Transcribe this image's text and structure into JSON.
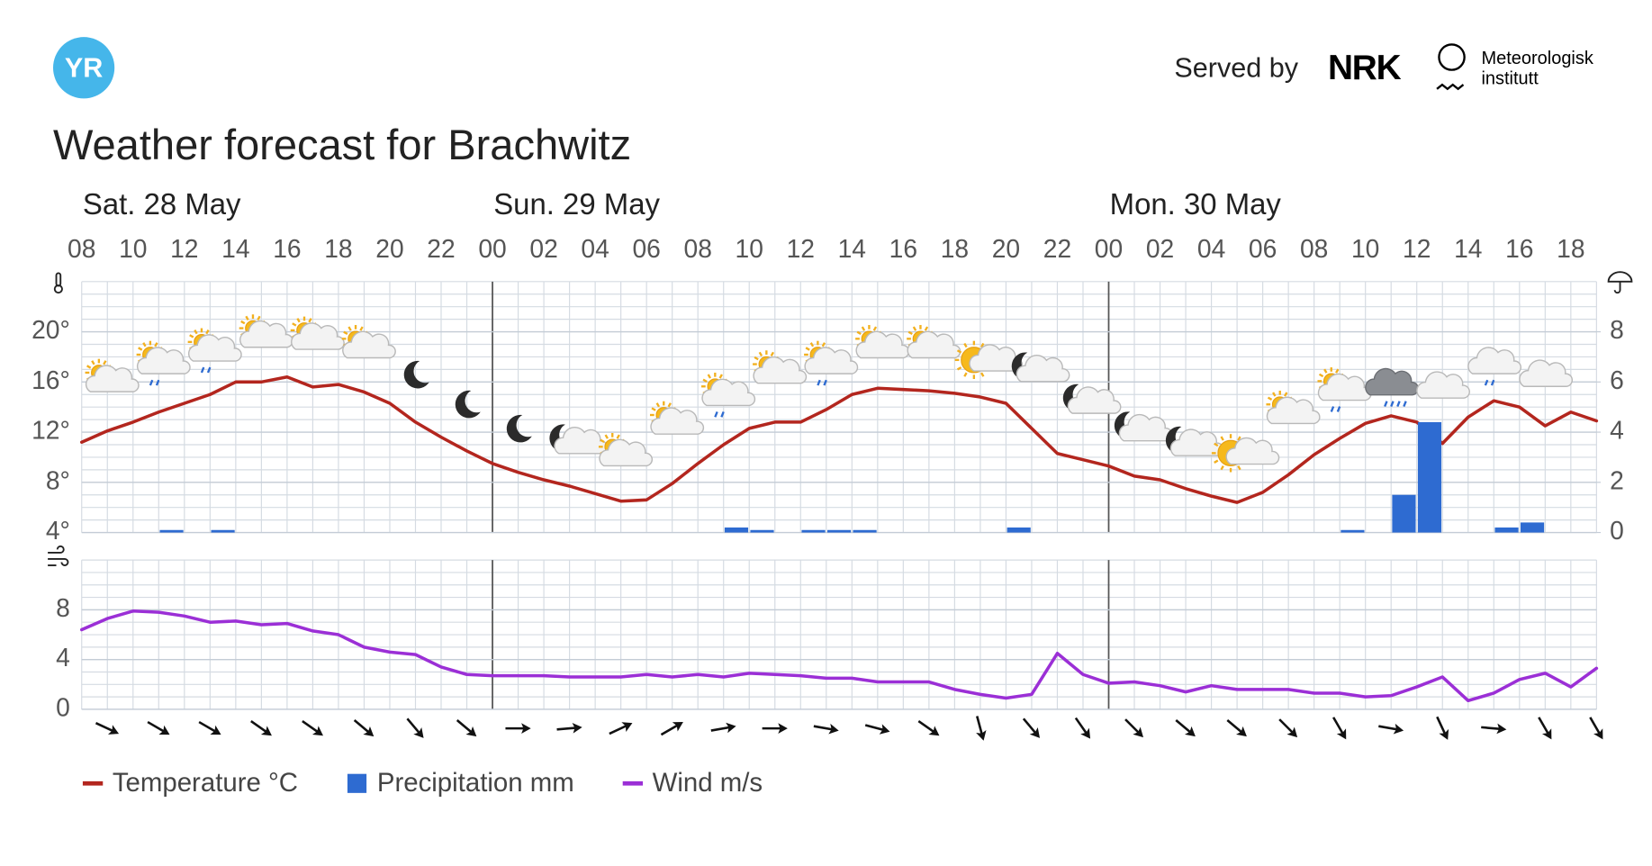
{
  "header": {
    "logo": "YR",
    "served_by": "Served by",
    "nrk": "NRK",
    "met_line1": "Meteorologisk",
    "met_line2": "institutt"
  },
  "chart_data": {
    "type": "line",
    "title": "Weather forecast for Brachwitz",
    "days": [
      "Sat. 28 May",
      "Sun. 29 May",
      "Mon. 30 May"
    ],
    "categories": [
      "08",
      null,
      "10",
      null,
      "12",
      null,
      "14",
      null,
      "16",
      null,
      "18",
      null,
      "20",
      null,
      "22",
      null,
      "00",
      null,
      "02",
      null,
      "04",
      null,
      "06",
      null,
      "08",
      null,
      "10",
      null,
      "12",
      null,
      "14",
      null,
      "16",
      null,
      "18",
      null,
      "20",
      null,
      "22",
      null,
      "00",
      null,
      "02",
      null,
      "04",
      null,
      "06",
      null,
      "08",
      null,
      "10",
      null,
      "12",
      null,
      "14",
      null,
      "16",
      null,
      "18",
      null
    ],
    "ylim": [
      4,
      24
    ],
    "yticks": [
      {
        "value": 4,
        "label": "4°"
      },
      {
        "value": 8,
        "label": "8°"
      },
      {
        "value": 12,
        "label": "12°"
      },
      {
        "value": 16,
        "label": "16°"
      },
      {
        "value": 20,
        "label": "20°"
      }
    ],
    "y2lim": [
      0,
      10
    ],
    "y2ticks": [
      0,
      2,
      4,
      6,
      8
    ],
    "y3lim": [
      0,
      12
    ],
    "y3ticks": [
      0,
      4,
      8
    ],
    "grid": true,
    "series": [
      {
        "name": "Temperature °C",
        "color": "#b3261e",
        "kind": "line",
        "axis": "y",
        "values": [
          11.2,
          12.1,
          12.8,
          13.6,
          14.3,
          15.0,
          16.0,
          16.0,
          16.4,
          15.6,
          15.8,
          15.2,
          14.3,
          12.8,
          11.6,
          10.5,
          9.5,
          8.8,
          8.2,
          7.7,
          7.1,
          6.5,
          6.6,
          7.9,
          9.5,
          11.0,
          12.3,
          12.8,
          12.8,
          13.8,
          15.0,
          15.5,
          15.4,
          15.3,
          15.1,
          14.8,
          14.3,
          12.3,
          10.3,
          9.8,
          9.3,
          8.5,
          8.2,
          7.5,
          6.9,
          6.4,
          7.2,
          8.6,
          10.2,
          11.5,
          12.7,
          13.3,
          12.8,
          11.1,
          13.2,
          14.5,
          14.0,
          12.5,
          13.6,
          12.9
        ]
      },
      {
        "name": "Precipitation mm",
        "color": "#2e6bd1",
        "kind": "bar",
        "axis": "y2",
        "values": [
          0,
          0,
          0,
          0.1,
          0,
          0.1,
          0,
          0,
          0,
          0,
          0,
          0,
          0,
          0,
          0,
          0,
          0,
          0,
          0,
          0,
          0,
          0,
          0,
          0,
          0,
          0.2,
          0.1,
          0,
          0.1,
          0.1,
          0.1,
          0,
          0,
          0,
          0,
          0,
          0.2,
          0,
          0,
          0,
          0,
          0,
          0,
          0,
          0,
          0,
          0,
          0,
          0,
          0.1,
          0,
          1.5,
          4.4,
          0,
          0,
          0.2,
          0.4,
          0,
          0,
          0
        ]
      },
      {
        "name": "Wind m/s",
        "color": "#9b2fd6",
        "kind": "line",
        "axis": "y3",
        "values": [
          6.4,
          7.3,
          7.9,
          7.8,
          7.5,
          7.0,
          7.1,
          6.8,
          6.9,
          6.3,
          6.0,
          5.0,
          4.6,
          4.4,
          3.4,
          2.8,
          2.7,
          2.7,
          2.7,
          2.6,
          2.6,
          2.6,
          2.8,
          2.6,
          2.8,
          2.6,
          2.9,
          2.8,
          2.7,
          2.5,
          2.5,
          2.2,
          2.2,
          2.2,
          1.6,
          1.2,
          0.9,
          1.2,
          4.5,
          2.8,
          2.1,
          2.2,
          1.9,
          1.4,
          1.9,
          1.6,
          1.6,
          1.6,
          1.3,
          1.3,
          1.0,
          1.1,
          1.8,
          2.6,
          0.7,
          1.3,
          2.4,
          2.9,
          1.8,
          3.3
        ]
      }
    ],
    "wind_direction": [
      null,
      25,
      null,
      30,
      null,
      30,
      null,
      35,
      null,
      35,
      null,
      40,
      null,
      50,
      null,
      40,
      null,
      0,
      null,
      -5,
      null,
      -25,
      null,
      -30,
      null,
      -10,
      null,
      0,
      null,
      10,
      null,
      15,
      null,
      35,
      null,
      75,
      null,
      50,
      null,
      55,
      null,
      45,
      null,
      40,
      null,
      40,
      null,
      45,
      null,
      60,
      null,
      10,
      null,
      65,
      null,
      5,
      null,
      60,
      null,
      60
    ]
  }
}
